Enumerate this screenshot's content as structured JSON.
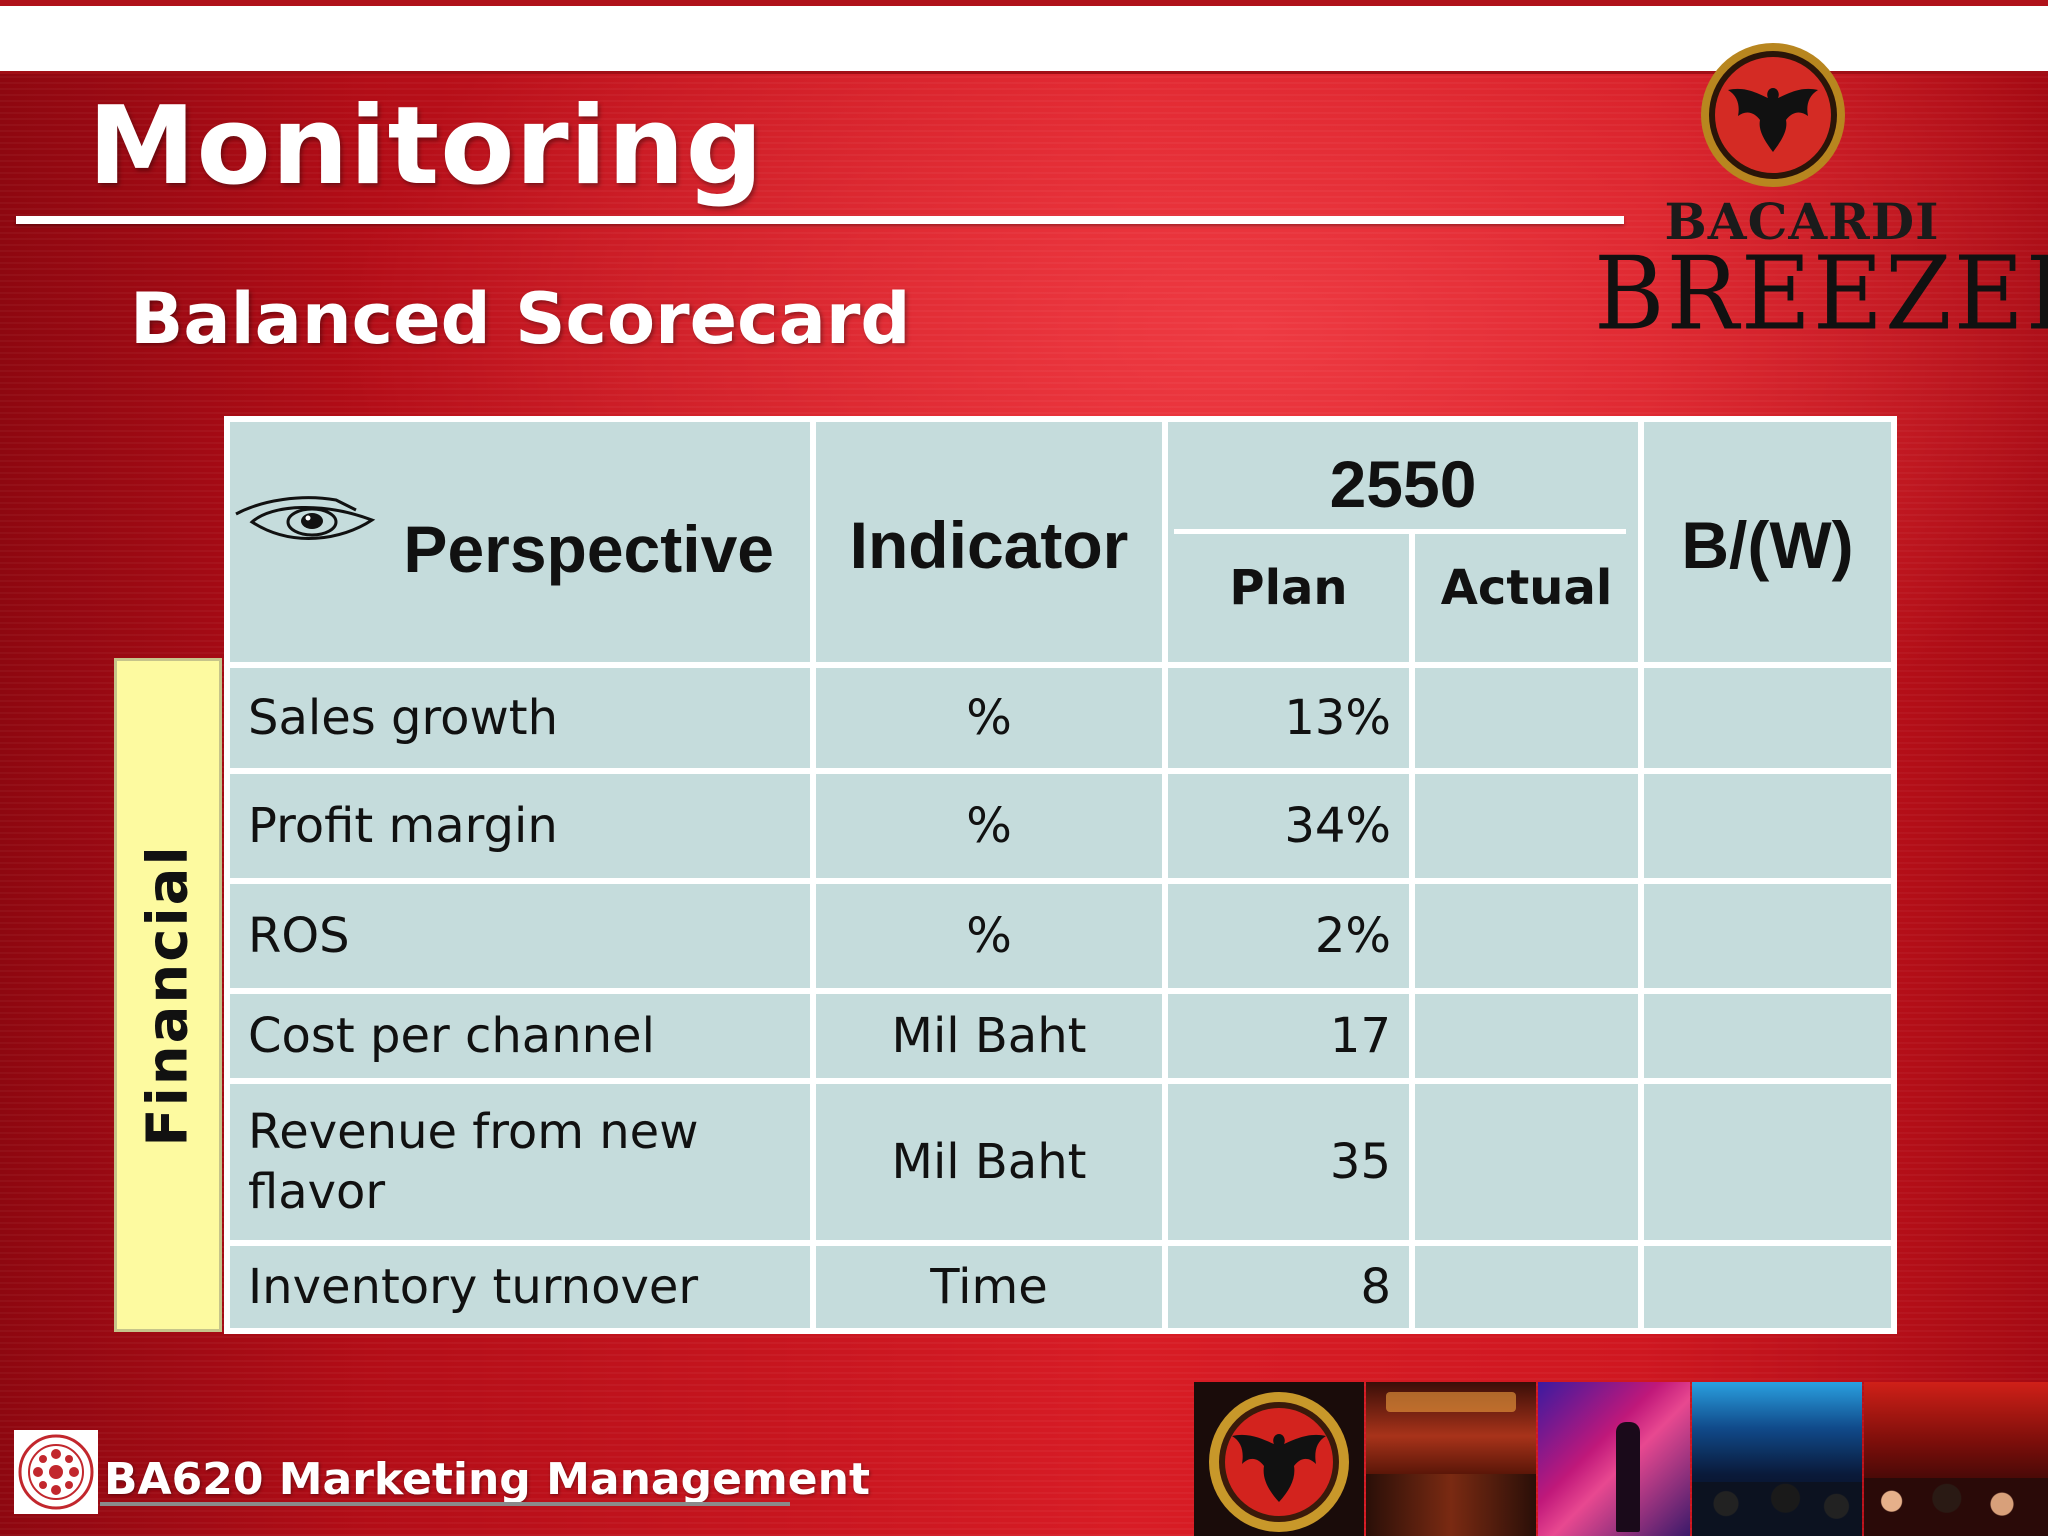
{
  "slide": {
    "title": "Monitoring",
    "subtitle": "Balanced Scorecard"
  },
  "logo": {
    "brand_line1": "BACARDI",
    "brand_line2": "BREEZER",
    "icon": "bat-emblem-icon"
  },
  "table": {
    "headers": {
      "perspective": "Perspective",
      "indicator": "Indicator",
      "year": "2550",
      "plan": "Plan",
      "actual": "Actual",
      "bw": "B/(W)"
    },
    "side_label": "Financial",
    "rows": [
      {
        "perspective": "Sales growth",
        "indicator": "%",
        "plan": "13%",
        "actual": "",
        "bw": ""
      },
      {
        "perspective": "Profit margin",
        "indicator": "%",
        "plan": "34%",
        "actual": "",
        "bw": ""
      },
      {
        "perspective": "ROS",
        "indicator": "%",
        "plan": "2%",
        "actual": "",
        "bw": ""
      },
      {
        "perspective": "Cost per channel",
        "indicator": "Mil Baht",
        "plan": "17",
        "actual": "",
        "bw": ""
      },
      {
        "perspective": "Revenue from new flavor",
        "indicator": "Mil Baht",
        "plan": "35",
        "actual": "",
        "bw": ""
      },
      {
        "perspective": "Inventory turnover",
        "indicator": "Time",
        "plan": "8",
        "actual": "",
        "bw": ""
      }
    ]
  },
  "footer": {
    "course": "BA620 Marketing Management",
    "icon": "university-seal-icon"
  },
  "colors": {
    "background_red": "#c0101a",
    "table_cell": "#c5dcdc",
    "side_label_bg": "#fdfaa0"
  }
}
